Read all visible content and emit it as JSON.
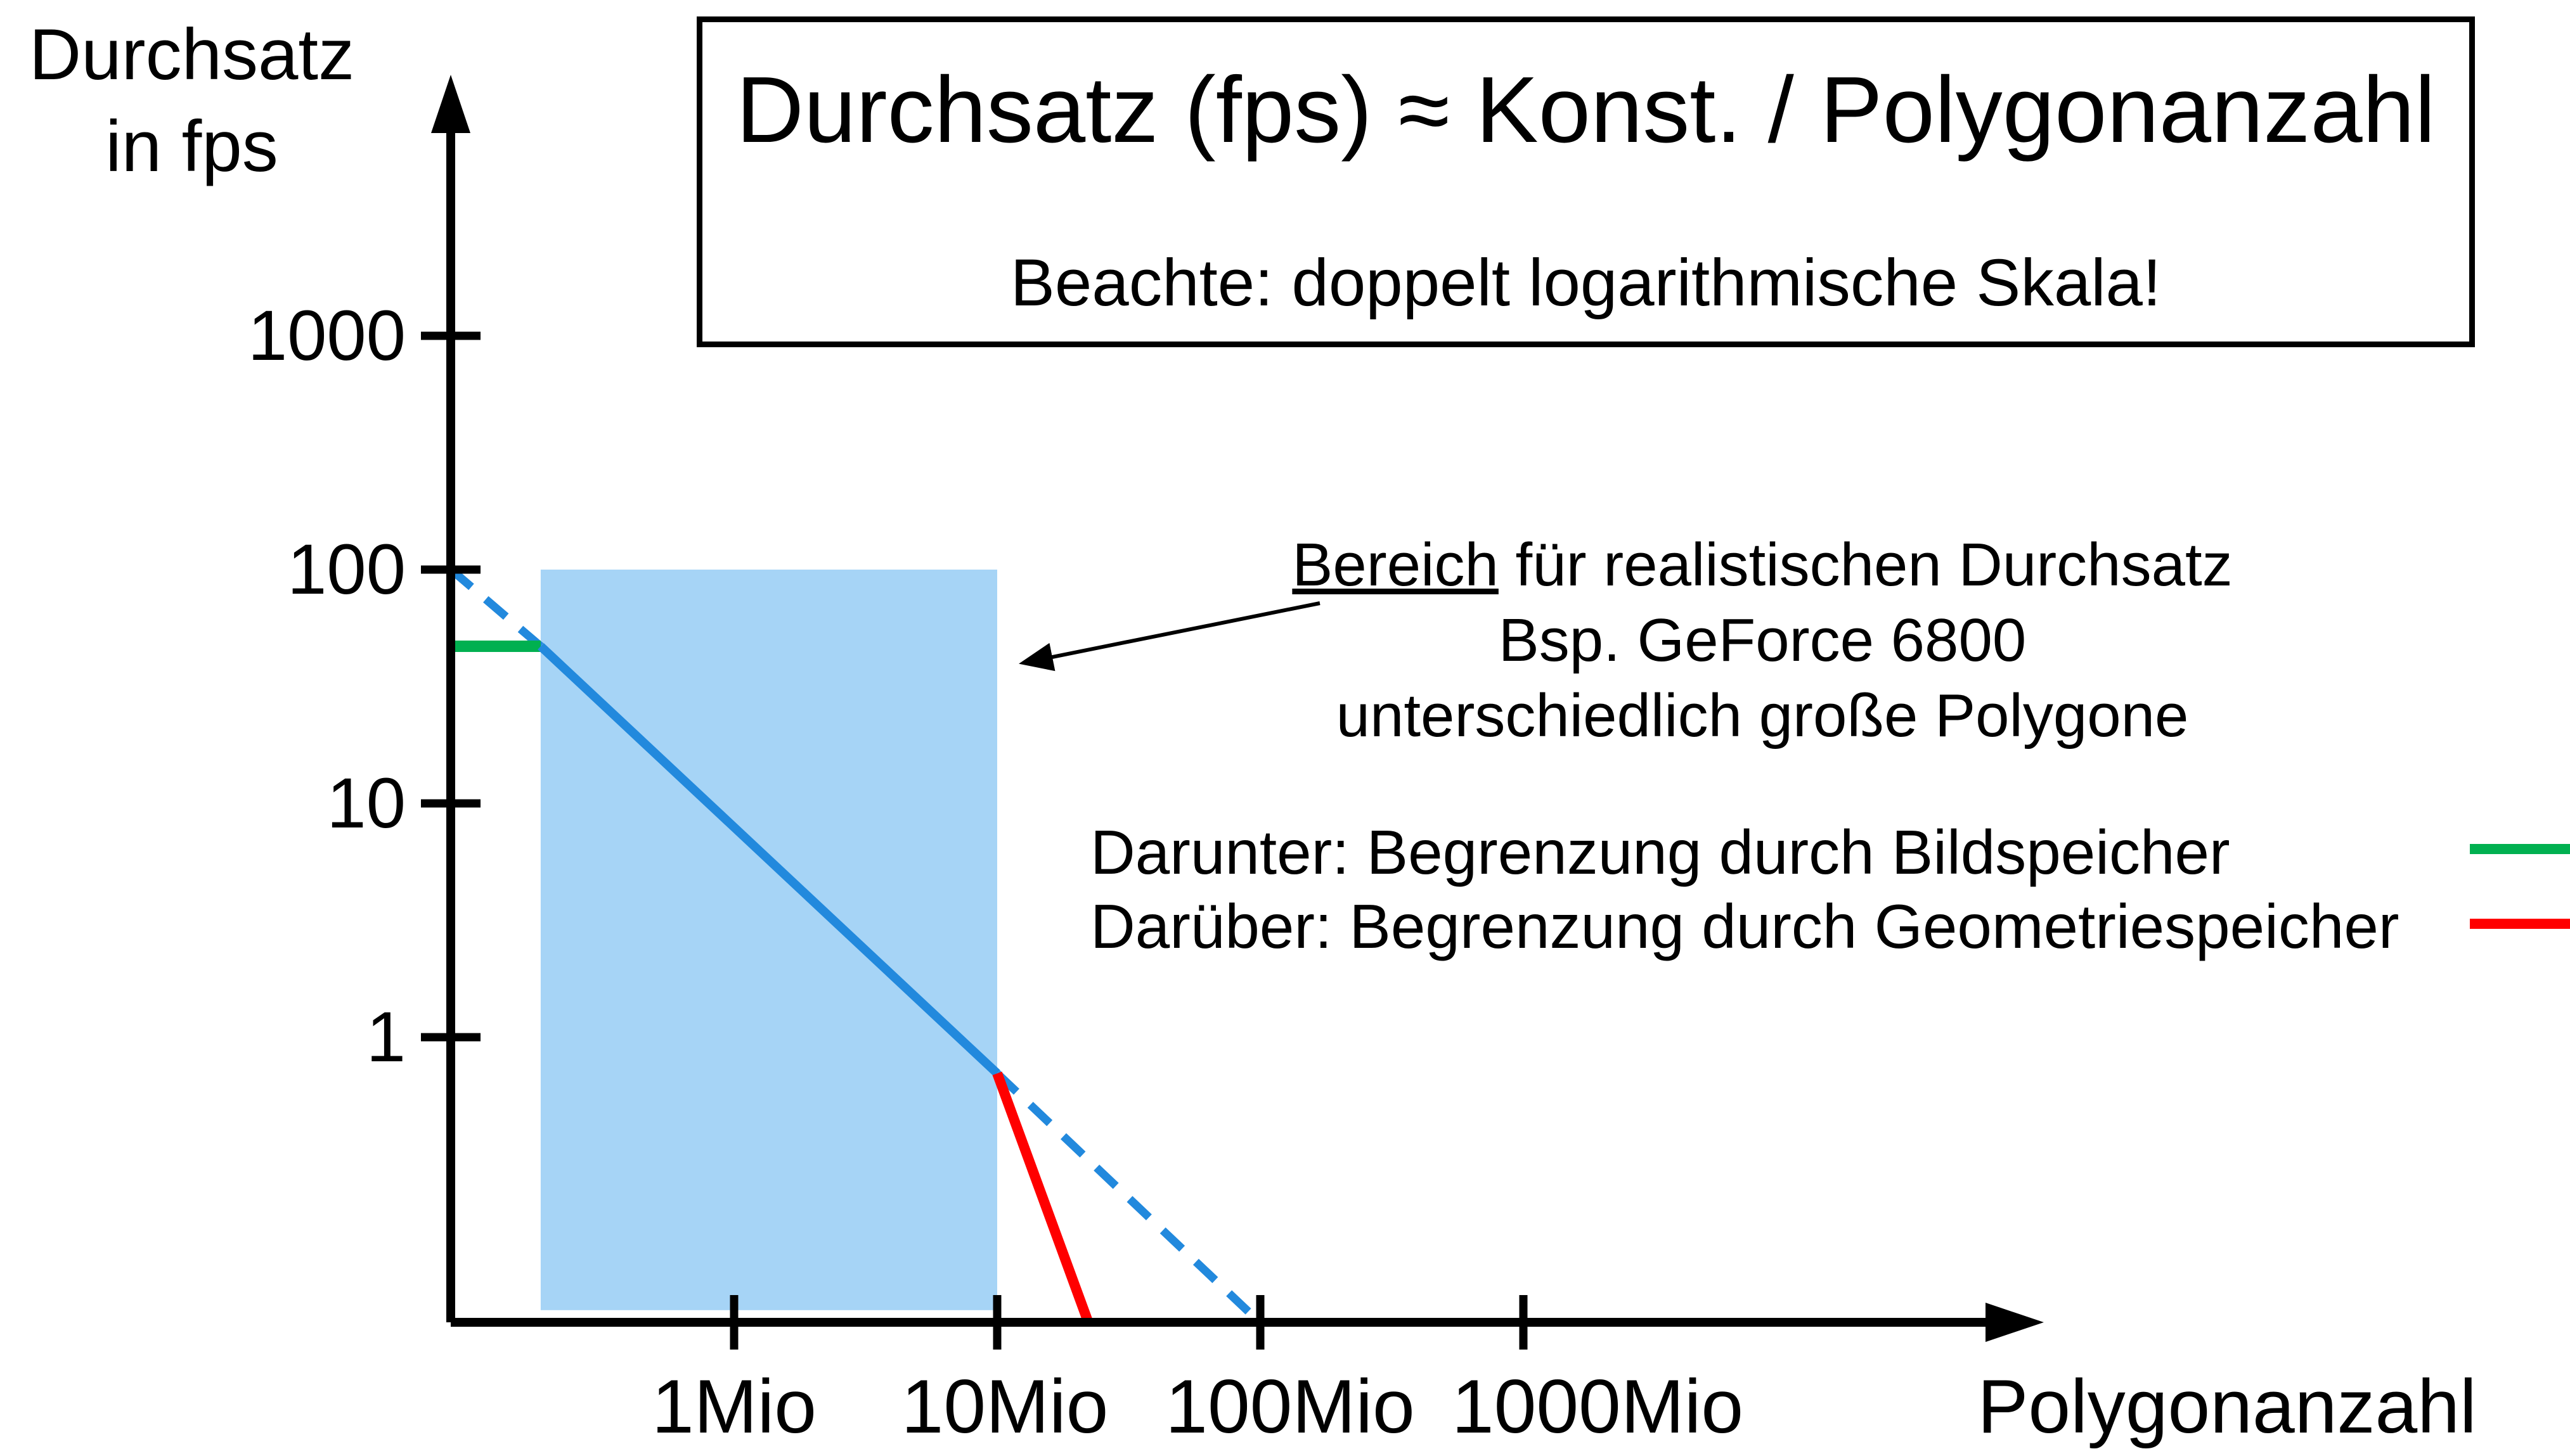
{
  "page": {
    "background": "#ffffff"
  },
  "title_box": {
    "title": "Durchsatz (fps) ≈ Konst. / Polygonanzahl",
    "subtitle": "Beachte: doppelt logarithmische Skala!"
  },
  "y_axis_title": {
    "line1": "Durchsatz",
    "line2": "in fps"
  },
  "x_axis_title": "Polygonanzahl",
  "annotation": {
    "line1_underlined": "Bereich",
    "line1_rest": " für realistischen Durchsatz",
    "line2": "Bsp. GeForce 6800",
    "line3": "unterschiedlich große Polygone"
  },
  "legend": [
    {
      "label": "Darunter: Begrenzung durch Bildspeicher",
      "color": "#00B050"
    },
    {
      "label": "Darüber: Begrenzung durch Geometriespeicher",
      "color": "#FF0000"
    }
  ],
  "colors": {
    "blue_line": "#2289DD",
    "region_fill": "#A6D4F6",
    "green_limit": "#00B050",
    "red_limit": "#FF0000",
    "axis": "#000000"
  },
  "chart_data": {
    "type": "line",
    "title": "Durchsatz (fps) ≈ Konst. / Polygonanzahl",
    "subtitle": "Beachte: doppelt logarithmische Skala!",
    "xlabel": "Polygonanzahl",
    "ylabel": "Durchsatz in fps",
    "x_scale": "log",
    "y_scale": "log",
    "xlim": [
      84000,
      3000000000
    ],
    "ylim": [
      0.06,
      2000
    ],
    "grid": false,
    "legend_position": "right",
    "x_ticks": [
      {
        "value": 1000000,
        "label": "1Mio"
      },
      {
        "value": 10000000,
        "label": "10Mio"
      },
      {
        "value": 100000000,
        "label": "100Mio"
      },
      {
        "value": 1000000000,
        "label": "1000Mio"
      }
    ],
    "y_ticks": [
      {
        "value": 1000,
        "label": "1000"
      },
      {
        "value": 100,
        "label": "100"
      },
      {
        "value": 10,
        "label": "10"
      },
      {
        "value": 1,
        "label": "1"
      }
    ],
    "series": [
      {
        "name": "ideal-throughput-dashed-left",
        "style": "dashed",
        "color": "#2289DD",
        "width": 13,
        "points": [
          [
            84000,
            100
          ],
          [
            184000,
            47
          ]
        ]
      },
      {
        "name": "framebuffer-limit-green",
        "style": "solid",
        "color": "#00B050",
        "width": 18,
        "points": [
          [
            84000,
            47
          ],
          [
            184000,
            47
          ]
        ]
      },
      {
        "name": "realistic-throughput-solid",
        "style": "solid",
        "color": "#2289DD",
        "width": 14,
        "points": [
          [
            184000,
            47
          ],
          [
            10000000,
            0.7
          ]
        ]
      },
      {
        "name": "ideal-throughput-dashed-right",
        "style": "dashed",
        "color": "#2289DD",
        "width": 13,
        "points": [
          [
            10000000,
            0.7
          ],
          [
            100000000,
            0.06
          ]
        ]
      },
      {
        "name": "geometry-limit-red",
        "style": "solid",
        "color": "#FF0000",
        "width": 16,
        "points": [
          [
            10000000,
            0.7
          ],
          [
            22000000,
            0.062
          ]
        ]
      }
    ],
    "region": {
      "name": "realistic-throughput-region",
      "x0": 184000,
      "x1": 10000000,
      "y0": 0.068,
      "y1": 100,
      "color": "#A6D4F6"
    }
  }
}
